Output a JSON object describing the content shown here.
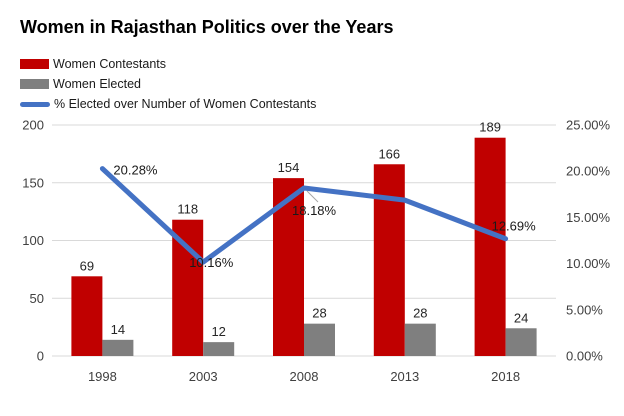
{
  "title": "Women in Rajasthan Politics over the Years",
  "legend": [
    {
      "label": "Women Contestants",
      "swatch": "bar",
      "color": "#C00000"
    },
    {
      "label": "Women Elected",
      "swatch": "bar",
      "color": "#7F7F7F"
    },
    {
      "label": "% Elected over Number of Women Contestants",
      "swatch": "line",
      "color": "#4472C4"
    }
  ],
  "colors": {
    "grid": "#D9D9D9",
    "axis_text": "#404040",
    "data_label_text": "#262626",
    "percent_label_text": "#1a1a1a",
    "leader": "#A6A6A6",
    "background": "#FFFFFF",
    "contestants_bar": "#C00000",
    "elected_bar": "#7F7F7F",
    "percent_line": "#4472C4"
  },
  "chart_data": {
    "type": "bar",
    "subtype": "combo-bar-line-dual-axis",
    "title": "Women in Rajasthan Politics over the Years",
    "categories": [
      "1998",
      "2003",
      "2008",
      "2013",
      "2018"
    ],
    "series": [
      {
        "name": "Women Contestants",
        "type": "bar",
        "axis": "left",
        "color": "#C00000",
        "values": [
          69,
          118,
          154,
          166,
          189
        ],
        "data_labels": [
          "69",
          "118",
          "154",
          "166",
          "189"
        ]
      },
      {
        "name": "Women Elected",
        "type": "bar",
        "axis": "left",
        "color": "#7F7F7F",
        "values": [
          14,
          12,
          28,
          28,
          24
        ],
        "data_labels": [
          "14",
          "12",
          "28",
          "28",
          "24"
        ]
      },
      {
        "name": "% Elected over Number of Women Contestants",
        "type": "line",
        "axis": "right",
        "color": "#4472C4",
        "values": [
          20.28,
          10.16,
          18.18,
          16.87,
          12.69
        ],
        "data_labels": [
          "20.28%",
          "10.16%",
          "18.18%",
          "",
          "12.69%"
        ]
      }
    ],
    "left_axis": {
      "min": 0,
      "max": 200,
      "step": 50,
      "tick_labels": [
        "0",
        "50",
        "100",
        "150",
        "200"
      ]
    },
    "right_axis": {
      "min": 0,
      "max": 25,
      "step": 5,
      "tick_labels": [
        "0.00%",
        "5.00%",
        "10.00%",
        "15.00%",
        "20.00%",
        "25.00%"
      ]
    },
    "grid": true,
    "legend_position": "top-left"
  }
}
